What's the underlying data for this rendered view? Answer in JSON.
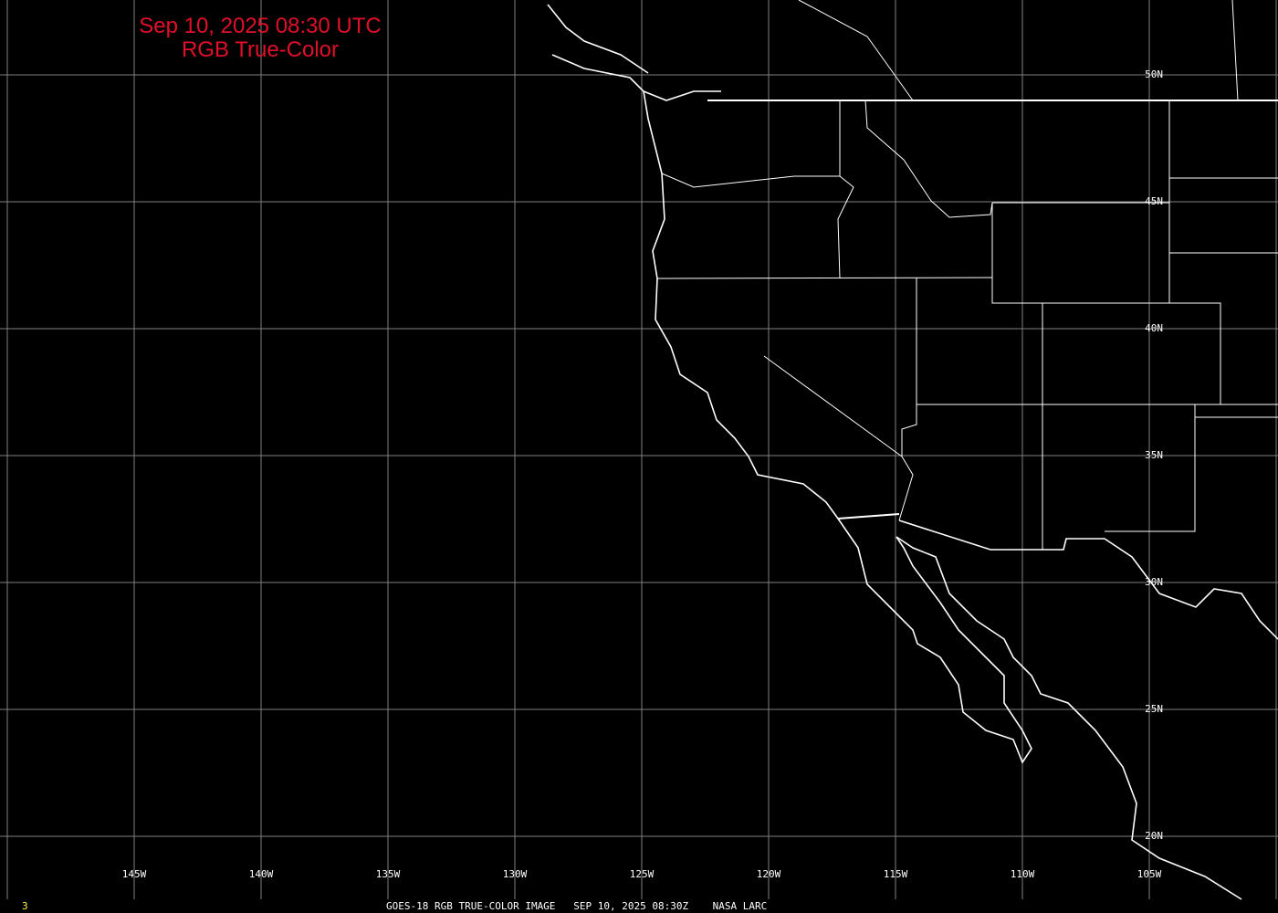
{
  "title": {
    "line1": "Sep 10, 2025 08:30 UTC",
    "line2": "RGB True-Color"
  },
  "colors": {
    "title": "#e0102a",
    "grid": "#808080",
    "boundaries": "#ffffff",
    "background": "#000000",
    "frame_number": "#ffee44"
  },
  "longitudes": [
    "145W",
    "140W",
    "135W",
    "130W",
    "125W",
    "120W",
    "115W",
    "110W",
    "105W"
  ],
  "latitudes": [
    "50N",
    "45N",
    "40N",
    "35N",
    "30N",
    "25N",
    "20N"
  ],
  "footer": {
    "frame": "3",
    "caption": "GOES-18 RGB TRUE-COLOR IMAGE   SEP 10, 2025 08:30Z    NASA LARC"
  }
}
